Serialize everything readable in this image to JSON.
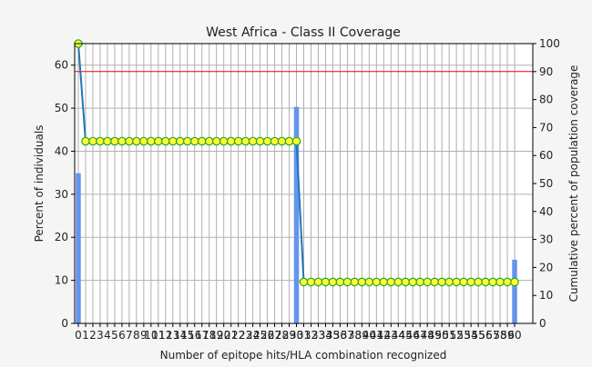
{
  "chart_data": {
    "type": "bar",
    "title": "West Africa - Class II Coverage",
    "xlabel": "Number of epitope hits/HLA combination recognized",
    "ylabel": "Percent of individuals",
    "y2label": "Cumulative percent of population coverage",
    "x": [
      0,
      1,
      2,
      3,
      4,
      5,
      6,
      7,
      8,
      9,
      10,
      11,
      12,
      13,
      14,
      15,
      16,
      17,
      18,
      19,
      20,
      21,
      22,
      23,
      24,
      25,
      26,
      27,
      28,
      29,
      30,
      31,
      32,
      33,
      34,
      35,
      36,
      37,
      38,
      39,
      40,
      41,
      42,
      43,
      44,
      45,
      46,
      47,
      48,
      49,
      50,
      51,
      52,
      53,
      54,
      55,
      56,
      57,
      58,
      59,
      60
    ],
    "xlim": [
      0,
      63
    ],
    "ylim": [
      0,
      65
    ],
    "y2lim": [
      0,
      100
    ],
    "grid": true,
    "series": [
      {
        "kind": "bar",
        "axis": "left",
        "color": "#6495ed",
        "values": [
          34.9,
          0,
          0,
          0,
          0,
          0,
          0,
          0,
          0,
          0,
          0,
          0,
          0,
          0,
          0,
          0,
          0,
          0,
          0,
          0,
          0,
          0,
          0,
          0,
          0,
          0,
          0,
          0,
          0,
          0,
          50.3,
          0,
          0,
          0,
          0,
          0,
          0,
          0,
          0,
          0,
          0,
          0,
          0,
          0,
          0,
          0,
          0,
          0,
          0,
          0,
          0,
          0,
          0,
          0,
          0,
          0,
          0,
          0,
          0,
          0,
          14.8
        ]
      },
      {
        "kind": "line",
        "axis": "right",
        "color": "#1f77b4",
        "marker_fill": "#ffff33",
        "marker_edge": "#2ca02c",
        "values": [
          100,
          65.1,
          65.1,
          65.1,
          65.1,
          65.1,
          65.1,
          65.1,
          65.1,
          65.1,
          65.1,
          65.1,
          65.1,
          65.1,
          65.1,
          65.1,
          65.1,
          65.1,
          65.1,
          65.1,
          65.1,
          65.1,
          65.1,
          65.1,
          65.1,
          65.1,
          65.1,
          65.1,
          65.1,
          65.1,
          65.1,
          14.8,
          14.8,
          14.8,
          14.8,
          14.8,
          14.8,
          14.8,
          14.8,
          14.8,
          14.8,
          14.8,
          14.8,
          14.8,
          14.8,
          14.8,
          14.8,
          14.8,
          14.8,
          14.8,
          14.8,
          14.8,
          14.8,
          14.8,
          14.8,
          14.8,
          14.8,
          14.8,
          14.8,
          14.8,
          14.8
        ]
      }
    ],
    "reference_line": {
      "axis": "right",
      "value": 90,
      "color": "#ff0000"
    }
  }
}
